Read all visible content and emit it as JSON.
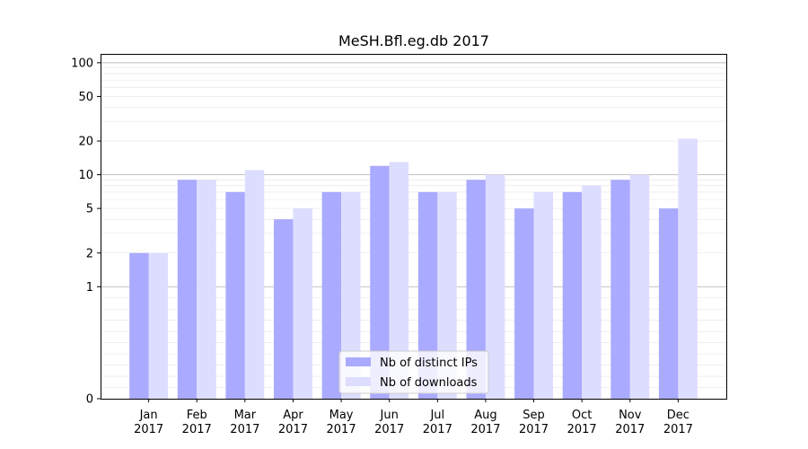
{
  "chart_data": {
    "type": "bar",
    "title": "MeSH.Bfl.eg.db 2017",
    "xlabel": "",
    "ylabel": "",
    "yscale": "symlog",
    "ylim": [
      0,
      120
    ],
    "yticks": [
      0,
      1,
      2,
      5,
      10,
      20,
      50,
      100
    ],
    "ytick_labels": [
      "0",
      "1",
      "2",
      "5",
      "10",
      "20",
      "50",
      "100"
    ],
    "grid": "y",
    "legend_position": "bottom-center",
    "categories": [
      [
        "Jan",
        "2017"
      ],
      [
        "Feb",
        "2017"
      ],
      [
        "Mar",
        "2017"
      ],
      [
        "Apr",
        "2017"
      ],
      [
        "May",
        "2017"
      ],
      [
        "Jun",
        "2017"
      ],
      [
        "Jul",
        "2017"
      ],
      [
        "Aug",
        "2017"
      ],
      [
        "Sep",
        "2017"
      ],
      [
        "Oct",
        "2017"
      ],
      [
        "Nov",
        "2017"
      ],
      [
        "Dec",
        "2017"
      ]
    ],
    "series": [
      {
        "name": "Nb of distinct IPs",
        "color": "#aaaaff",
        "values": [
          2,
          9,
          7,
          4,
          7,
          12,
          7,
          9,
          5,
          7,
          9,
          5
        ]
      },
      {
        "name": "Nb of downloads",
        "color": "#ddddff",
        "values": [
          2,
          9,
          11,
          5,
          7,
          13,
          7,
          10,
          7,
          8,
          10,
          21
        ]
      }
    ]
  }
}
